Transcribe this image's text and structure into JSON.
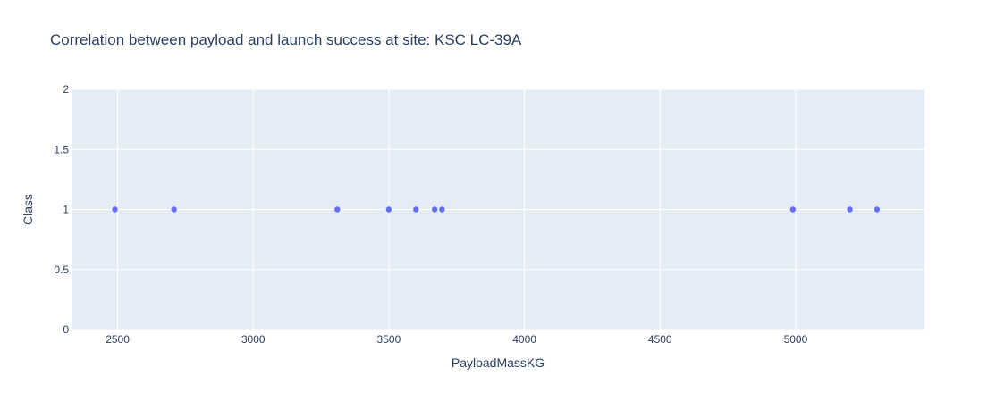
{
  "chart_data": {
    "type": "scatter",
    "title": "Correlation between payload and launch success at site: KSC LC-39A",
    "xlabel": "PayloadMassKG",
    "ylabel": "Class",
    "xlim": [
      2330,
      5475
    ],
    "ylim": [
      0,
      2
    ],
    "xticks": [
      2500,
      3000,
      3500,
      4000,
      4500,
      5000
    ],
    "yticks": [
      0,
      0.5,
      1,
      1.5,
      2
    ],
    "grid": true,
    "series": [
      {
        "x": [
          2490,
          2708,
          3310,
          3500,
          3600,
          3669,
          3696,
          4990,
          5200,
          5300
        ],
        "y": [
          1,
          1,
          1,
          1,
          1,
          1,
          1,
          1,
          1,
          1
        ],
        "color": "#636efa"
      }
    ]
  }
}
